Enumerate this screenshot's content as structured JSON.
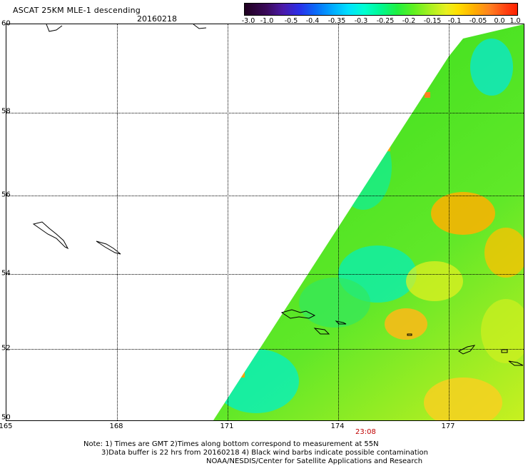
{
  "title": "ASCAT 25KM MLE-1 descending",
  "date": "20160218",
  "colorbar": {
    "ticks": [
      "-3.0",
      "-1.0",
      "-0.5",
      "-0.4",
      "-0.35",
      "-0.3",
      "-0.25",
      "-0.2",
      "-0.15",
      "-0.1",
      "-0.05",
      "0.0",
      "1.0"
    ]
  },
  "axes": {
    "longitudes": [
      "165",
      "168",
      "171",
      "174",
      "177"
    ],
    "latitudes": [
      "60",
      "58",
      "56",
      "54",
      "52",
      "50"
    ]
  },
  "time_label": "23:08",
  "notes": [
    "Note: 1) Times are GMT 2)Times along bottom correspond to measurement at 55N",
    "3)Data buffer is 22 hrs from 20160218 4) Black wind barbs indicate possible contamination",
    "NOAA/NESDIS/Center for Satellite Applications and Research"
  ],
  "colors": {
    "swath_green": "#40e020",
    "swath_cyan": "#00f0d0",
    "swath_yellow": "#d8f020",
    "swath_orange": "#ffa000"
  }
}
